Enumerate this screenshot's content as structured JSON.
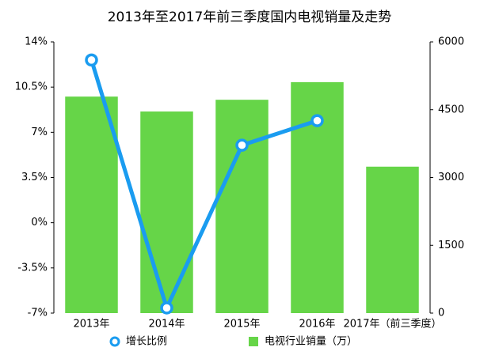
{
  "chart_data": {
    "type": "bar_line",
    "title": "2013年至2017年前三季度国内电视销量及走势",
    "categories": [
      "2013年",
      "2014年",
      "2015年",
      "2016年",
      "2017年（前三季度）"
    ],
    "series": [
      {
        "name": "电视行业销量（万）",
        "type": "bar",
        "axis": "y2",
        "color": "#66d548",
        "values": [
          4790,
          4460,
          4720,
          5110,
          3240
        ]
      },
      {
        "name": "增长比例",
        "type": "line",
        "color": "#1a9cf0",
        "values": [
          12.6,
          -6.6,
          6.0,
          7.9,
          null
        ]
      }
    ],
    "ylim": [
      -7,
      14
    ],
    "yticks": [
      {
        "value": 14,
        "label": "14%"
      },
      {
        "value": 10.5,
        "label": "10.5%"
      },
      {
        "value": 7,
        "label": "7%"
      },
      {
        "value": 3.5,
        "label": "3.5%"
      },
      {
        "value": 0,
        "label": "0%"
      },
      {
        "value": -3.5,
        "label": "-3.5%"
      },
      {
        "value": -7,
        "label": "-7%"
      }
    ],
    "y2lim": [
      0,
      6000
    ],
    "y2ticks": [
      0,
      1500,
      3000,
      4500,
      6000
    ]
  }
}
